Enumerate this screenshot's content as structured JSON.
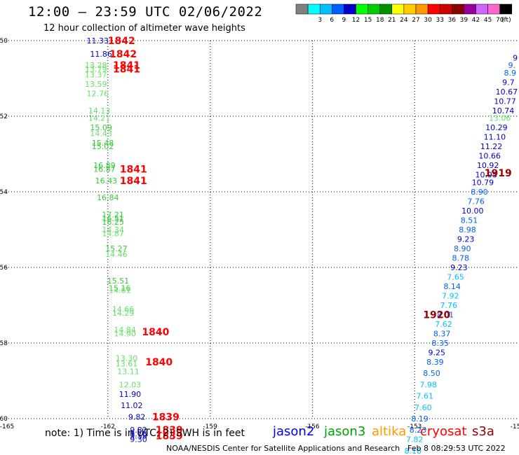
{
  "header": {
    "title": "12:00 – 23:59 UTC 02/06/2022",
    "subtitle": "12 hour collection of altimeter wave heights"
  },
  "legend": {
    "unit_label": "(ft)",
    "swatches": [
      {
        "color": "#808080",
        "label": ""
      },
      {
        "color": "#00ffff",
        "label": "3"
      },
      {
        "color": "#00bfff",
        "label": "6"
      },
      {
        "color": "#0060ff",
        "label": "9"
      },
      {
        "color": "#0000cc",
        "label": "12"
      },
      {
        "color": "#00ff00",
        "label": "15"
      },
      {
        "color": "#00cc00",
        "label": "18"
      },
      {
        "color": "#008f00",
        "label": "21"
      },
      {
        "color": "#ffff00",
        "label": "24"
      },
      {
        "color": "#ffcc00",
        "label": "27"
      },
      {
        "color": "#ff9900",
        "label": "30"
      },
      {
        "color": "#ff0000",
        "label": "33"
      },
      {
        "color": "#cc0000",
        "label": "36"
      },
      {
        "color": "#8b0000",
        "label": "39"
      },
      {
        "color": "#990099",
        "label": "42"
      },
      {
        "color": "#cc66ff",
        "label": "45"
      },
      {
        "color": "#ff66cc",
        "label": "70"
      },
      {
        "color": "#000000",
        "label": ""
      }
    ]
  },
  "axes": {
    "lat_labels": [
      "-50",
      "-52",
      "-54",
      "-56",
      "-58",
      "-60"
    ],
    "lon_labels": [
      "-165",
      "-162",
      "-159",
      "-156",
      "-153",
      "-15"
    ]
  },
  "tracks": {
    "track_a": [
      {
        "lat": -50.0,
        "lon": -162.3,
        "value": "11.33",
        "color": "#0000cc"
      },
      {
        "lat": -50.35,
        "lon": -162.2,
        "value": "11.86",
        "color": "#0000cc"
      },
      {
        "lat": -50.65,
        "lon": -162.35,
        "value": "13.28",
        "color": "#66e066"
      },
      {
        "lat": -50.75,
        "lon": -162.35,
        "value": "13.79",
        "color": "#66e066"
      },
      {
        "lat": -50.9,
        "lon": -162.35,
        "value": "13.37",
        "color": "#66e066"
      },
      {
        "lat": -51.15,
        "lon": -162.35,
        "value": "13.59",
        "color": "#66e066"
      },
      {
        "lat": -51.4,
        "lon": -162.3,
        "value": "12.76",
        "color": "#66e066"
      },
      {
        "lat": -51.85,
        "lon": -162.25,
        "value": "14.13",
        "color": "#66e066"
      },
      {
        "lat": -52.05,
        "lon": -162.25,
        "value": "14.21",
        "color": "#66e066"
      },
      {
        "lat": -52.3,
        "lon": -162.2,
        "value": "15.09",
        "color": "#33cc33"
      },
      {
        "lat": -52.45,
        "lon": -162.2,
        "value": "14.43",
        "color": "#66e066"
      },
      {
        "lat": -52.7,
        "lon": -162.15,
        "value": "15.48",
        "color": "#33cc33"
      },
      {
        "lat": -52.8,
        "lon": -162.15,
        "value": "15.02",
        "color": "#33cc33"
      },
      {
        "lat": -53.3,
        "lon": -162.1,
        "value": "16.89",
        "color": "#33cc33"
      },
      {
        "lat": -53.4,
        "lon": -162.1,
        "value": "16.87",
        "color": "#33cc33"
      },
      {
        "lat": -53.7,
        "lon": -162.05,
        "value": "16.43",
        "color": "#33cc33"
      },
      {
        "lat": -54.15,
        "lon": -162.0,
        "value": "16.84",
        "color": "#33cc33"
      },
      {
        "lat": -54.6,
        "lon": -161.85,
        "value": "17.21",
        "color": "#33cc33"
      },
      {
        "lat": -54.7,
        "lon": -161.85,
        "value": "16.51",
        "color": "#33cc33"
      },
      {
        "lat": -54.8,
        "lon": -161.85,
        "value": "16.25",
        "color": "#33cc33"
      },
      {
        "lat": -55.0,
        "lon": -161.85,
        "value": "14.34",
        "color": "#66e066"
      },
      {
        "lat": -55.1,
        "lon": -161.85,
        "value": "14.87",
        "color": "#66e066"
      },
      {
        "lat": -55.5,
        "lon": -161.75,
        "value": "15.27",
        "color": "#33cc33"
      },
      {
        "lat": -55.65,
        "lon": -161.75,
        "value": "14.46",
        "color": "#66e066"
      },
      {
        "lat": -56.35,
        "lon": -161.7,
        "value": "15.51",
        "color": "#33cc33"
      },
      {
        "lat": -56.55,
        "lon": -161.65,
        "value": "15.16",
        "color": "#33cc33"
      },
      {
        "lat": -56.6,
        "lon": -161.65,
        "value": "14.61",
        "color": "#66e066"
      },
      {
        "lat": -57.1,
        "lon": -161.55,
        "value": "14.66",
        "color": "#66e066"
      },
      {
        "lat": -57.2,
        "lon": -161.55,
        "value": "14.29",
        "color": "#66e066"
      },
      {
        "lat": -57.65,
        "lon": -161.5,
        "value": "14.84",
        "color": "#66e066"
      },
      {
        "lat": -57.75,
        "lon": -161.5,
        "value": "14.90",
        "color": "#66e066"
      },
      {
        "lat": -58.4,
        "lon": -161.45,
        "value": "13.30",
        "color": "#66e066"
      },
      {
        "lat": -58.55,
        "lon": -161.45,
        "value": "13.61",
        "color": "#66e066"
      },
      {
        "lat": -58.75,
        "lon": -161.4,
        "value": "13.11",
        "color": "#66e066"
      },
      {
        "lat": -59.1,
        "lon": -161.35,
        "value": "12.03",
        "color": "#66e066"
      },
      {
        "lat": -59.35,
        "lon": -161.35,
        "value": "11.90",
        "color": "#0000cc"
      },
      {
        "lat": -59.65,
        "lon": -161.3,
        "value": "11.02",
        "color": "#0000cc"
      },
      {
        "lat": -59.95,
        "lon": -161.15,
        "value": "9.82",
        "color": "#0000cc"
      },
      {
        "lat": -60.3,
        "lon": -161.1,
        "value": "9.82",
        "color": "#0000cc"
      },
      {
        "lat": -60.4,
        "lon": -161.1,
        "value": "9.76",
        "color": "#0000cc"
      },
      {
        "lat": -60.45,
        "lon": -161.1,
        "value": "9.58",
        "color": "#0000cc"
      },
      {
        "lat": -60.55,
        "lon": -161.1,
        "value": "9.30",
        "color": "#0000cc"
      }
    ],
    "track_b": [
      {
        "lat": -50.45,
        "lon": -150.05,
        "value": "9",
        "color": "#0000cc"
      },
      {
        "lat": -50.65,
        "lon": -150.15,
        "value": "9.",
        "color": "#0060ff"
      },
      {
        "lat": -50.85,
        "lon": -150.2,
        "value": "8.9",
        "color": "#0060ff"
      },
      {
        "lat": -51.1,
        "lon": -150.25,
        "value": "9.7",
        "color": "#0000cc"
      },
      {
        "lat": -51.35,
        "lon": -150.3,
        "value": "10.67",
        "color": "#0000cc"
      },
      {
        "lat": -51.6,
        "lon": -150.35,
        "value": "10.77",
        "color": "#0000cc"
      },
      {
        "lat": -51.85,
        "lon": -150.4,
        "value": "10.74",
        "color": "#0000cc"
      },
      {
        "lat": -52.05,
        "lon": -150.5,
        "value": "13.06",
        "color": "#66e066"
      },
      {
        "lat": -52.3,
        "lon": -150.6,
        "value": "10.29",
        "color": "#0000cc"
      },
      {
        "lat": -52.55,
        "lon": -150.65,
        "value": "11.10",
        "color": "#0000cc"
      },
      {
        "lat": -52.8,
        "lon": -150.75,
        "value": "11.22",
        "color": "#0000cc"
      },
      {
        "lat": -53.05,
        "lon": -150.8,
        "value": "10.66",
        "color": "#0000cc"
      },
      {
        "lat": -53.3,
        "lon": -150.85,
        "value": "10.92",
        "color": "#0000cc"
      },
      {
        "lat": -53.55,
        "lon": -150.9,
        "value": "10.95",
        "color": "#0000cc"
      },
      {
        "lat": -53.75,
        "lon": -151.0,
        "value": "10.79",
        "color": "#0000cc"
      },
      {
        "lat": -54.0,
        "lon": -151.1,
        "value": "8.90",
        "color": "#0060ff"
      },
      {
        "lat": -54.25,
        "lon": -151.2,
        "value": "7.76",
        "color": "#0060ff"
      },
      {
        "lat": -54.5,
        "lon": -151.3,
        "value": "10.00",
        "color": "#0000cc"
      },
      {
        "lat": -54.75,
        "lon": -151.4,
        "value": "8.51",
        "color": "#0060ff"
      },
      {
        "lat": -55.0,
        "lon": -151.45,
        "value": "8.98",
        "color": "#0060ff"
      },
      {
        "lat": -55.25,
        "lon": -151.5,
        "value": "9.23",
        "color": "#0000cc"
      },
      {
        "lat": -55.5,
        "lon": -151.6,
        "value": "8.90",
        "color": "#0060ff"
      },
      {
        "lat": -55.75,
        "lon": -151.65,
        "value": "8.78",
        "color": "#0060ff"
      },
      {
        "lat": -56.0,
        "lon": -151.7,
        "value": "9.23",
        "color": "#0000cc"
      },
      {
        "lat": -56.25,
        "lon": -151.8,
        "value": "7.65",
        "color": "#00bfff"
      },
      {
        "lat": -56.5,
        "lon": -151.9,
        "value": "8.14",
        "color": "#0060ff"
      },
      {
        "lat": -56.75,
        "lon": -151.95,
        "value": "7.92",
        "color": "#00bfff"
      },
      {
        "lat": -57.0,
        "lon": -152.0,
        "value": "7.76",
        "color": "#00bfff"
      },
      {
        "lat": -57.25,
        "lon": -152.1,
        "value": "8.01",
        "color": "#0060ff"
      },
      {
        "lat": -57.5,
        "lon": -152.15,
        "value": "7.62",
        "color": "#00bfff"
      },
      {
        "lat": -57.75,
        "lon": -152.2,
        "value": "8.37",
        "color": "#0060ff"
      },
      {
        "lat": -58.0,
        "lon": -152.25,
        "value": "8.35",
        "color": "#0060ff"
      },
      {
        "lat": -58.25,
        "lon": -152.35,
        "value": "9.25",
        "color": "#0000cc"
      },
      {
        "lat": -58.5,
        "lon": -152.4,
        "value": "8.39",
        "color": "#0060ff"
      },
      {
        "lat": -58.8,
        "lon": -152.5,
        "value": "8.50",
        "color": "#0060ff"
      },
      {
        "lat": -59.1,
        "lon": -152.6,
        "value": "7.98",
        "color": "#00bfff"
      },
      {
        "lat": -59.4,
        "lon": -152.7,
        "value": "7.61",
        "color": "#00bfff"
      },
      {
        "lat": -59.7,
        "lon": -152.75,
        "value": "7.60",
        "color": "#00bfff"
      },
      {
        "lat": -60.0,
        "lon": -152.85,
        "value": "8.19",
        "color": "#0060ff"
      },
      {
        "lat": -60.3,
        "lon": -152.9,
        "value": "8.23",
        "color": "#0060ff"
      },
      {
        "lat": -60.55,
        "lon": -153.0,
        "value": "7.82",
        "color": "#00bfff"
      },
      {
        "lat": -60.85,
        "lon": -153.05,
        "value": "8.18",
        "color": "#00bfff"
      }
    ]
  },
  "time_labels": [
    {
      "text": "1842",
      "lat": -50.0,
      "lon": -161.6,
      "color": "#ff0000"
    },
    {
      "text": "1842",
      "lat": -50.35,
      "lon": -161.55,
      "color": "#ff0000"
    },
    {
      "text": "1841",
      "lat": -50.65,
      "lon": -161.45,
      "color": "#ff0000"
    },
    {
      "text": "1841",
      "lat": -50.75,
      "lon": -161.45,
      "color": "#ff0000"
    },
    {
      "text": "1841",
      "lat": -53.4,
      "lon": -161.25,
      "color": "#ff0000"
    },
    {
      "text": "1841",
      "lat": -53.7,
      "lon": -161.25,
      "color": "#ff0000"
    },
    {
      "text": "1840",
      "lat": -57.7,
      "lon": -160.6,
      "color": "#ff0000"
    },
    {
      "text": "1840",
      "lat": -58.5,
      "lon": -160.5,
      "color": "#ff0000"
    },
    {
      "text": "1839",
      "lat": -59.95,
      "lon": -160.3,
      "color": "#ff0000"
    },
    {
      "text": "1839",
      "lat": -60.3,
      "lon": -160.2,
      "color": "#ff0000"
    },
    {
      "text": "1839",
      "lat": -60.45,
      "lon": -160.2,
      "color": "#ff0000"
    },
    {
      "text": "1919",
      "lat": -53.5,
      "lon": -150.55,
      "color": "#990000"
    },
    {
      "text": "1920",
      "lat": -57.25,
      "lon": -152.35,
      "color": "#990000"
    }
  ],
  "footer": {
    "note": "note: 1) Time is in UTC; 2) SWH is in feet",
    "satellites": [
      {
        "name": "jason2",
        "color": "#0000ee"
      },
      {
        "name": "jason3",
        "color": "#00a000"
      },
      {
        "name": "altika",
        "color": "#ff9900"
      },
      {
        "name": "cryosat",
        "color": "#ff0000"
      },
      {
        "name": "s3a",
        "color": "#8b0000"
      }
    ],
    "credit": "NOAA/NESDIS Center for Satellite Applications and Research",
    "generated": "Feb  8 08:29:53 UTC 2022"
  }
}
